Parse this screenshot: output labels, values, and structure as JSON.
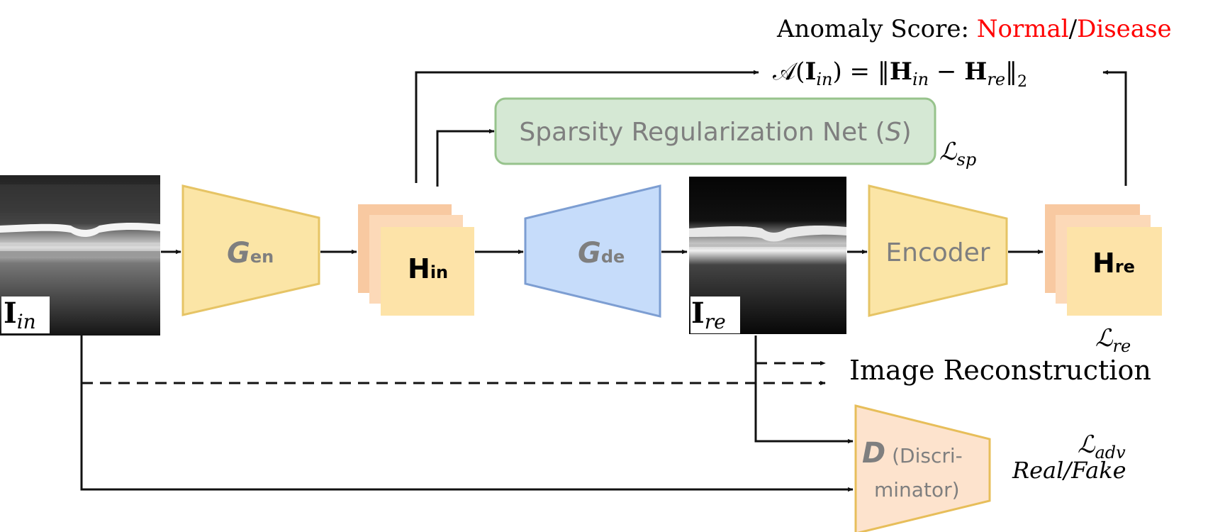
{
  "header": {
    "anomaly_prefix": "Anomaly Score: ",
    "normal": "Normal",
    "slash": "/",
    "disease": "Disease",
    "red": "#ff0000"
  },
  "formula": {
    "A": "𝒜",
    "lpar": "(",
    "I": "I",
    "in": "in",
    "rpar_eq": ") = ‖",
    "H": "H",
    "minus": " − ",
    "re": "re",
    "norm_close": "‖",
    "sub2": "2"
  },
  "sparsity": {
    "label": "Sparsity Regularization Net (",
    "S": "S",
    "close": ")",
    "fill": "#d5e8d4",
    "stroke": "#97c38c"
  },
  "losses": {
    "L": "ℒ",
    "sp": "sp",
    "re": "re",
    "adv": "adv"
  },
  "blocks": {
    "gen": {
      "G": "G",
      "sub": "en"
    },
    "gde": {
      "G": "G",
      "sub": "de"
    },
    "encoder": "Encoder",
    "d": {
      "D": "D",
      "line1": " (Discri-",
      "line2": "minator)"
    },
    "hin": {
      "H": "H",
      "sub": "in"
    },
    "hre": {
      "H": "H",
      "sub": "re"
    }
  },
  "images": {
    "iin": {
      "I": "I",
      "sub": "in"
    },
    "ire": {
      "I": "I",
      "sub": "re"
    }
  },
  "labels": {
    "image_reconstruction": "Image Reconstruction",
    "real_fake": "Real/Fake"
  },
  "colors": {
    "yellow_fill": "#fbe5a6",
    "yellow_stroke": "#e6c465",
    "blue_fill": "#c6dcfa",
    "blue_stroke": "#7d9ed2",
    "peach_fill": "#fde3cd",
    "peach_back": "#f8c9a1",
    "d_stroke": "#e7be5a",
    "gray_text": "#7f7f7f"
  }
}
